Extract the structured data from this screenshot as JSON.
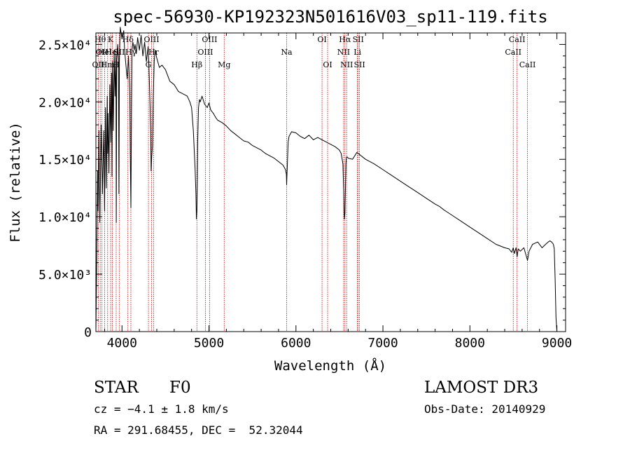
{
  "chart_data": {
    "type": "line",
    "title": "spec-56930-KP192323N501616V03_sp11-119.fits",
    "xlabel": "Wavelength (Å)",
    "ylabel": "Flux (relative)",
    "xlim": [
      3700,
      9100
    ],
    "ylim": [
      0,
      26000
    ],
    "x_ticks": [
      {
        "value": 4000,
        "label": "4000"
      },
      {
        "value": 5000,
        "label": "5000"
      },
      {
        "value": 6000,
        "label": "6000"
      },
      {
        "value": 7000,
        "label": "7000"
      },
      {
        "value": 8000,
        "label": "8000"
      },
      {
        "value": 9000,
        "label": "9000"
      }
    ],
    "y_ticks": [
      {
        "value": 0,
        "label": "0"
      },
      {
        "value": 5000,
        "label": "5.0×10³"
      },
      {
        "value": 10000,
        "label": "1.0×10⁴"
      },
      {
        "value": 15000,
        "label": "1.5×10⁴"
      },
      {
        "value": 20000,
        "label": "2.0×10⁴"
      },
      {
        "value": 25000,
        "label": "2.5×10⁴"
      }
    ],
    "series": [
      {
        "name": "spectrum",
        "color": "#000000",
        "x": [
          3700,
          3710,
          3720,
          3725,
          3735,
          3745,
          3760,
          3775,
          3790,
          3800,
          3810,
          3820,
          3830,
          3835,
          3840,
          3850,
          3860,
          3870,
          3880,
          3885,
          3890,
          3900,
          3910,
          3920,
          3930,
          3934,
          3940,
          3950,
          3960,
          3965,
          3970,
          3975,
          3980,
          3990,
          4000,
          4010,
          4020,
          4030,
          4045,
          4060,
          4075,
          4090,
          4095,
          4102,
          4110,
          4115,
          4125,
          4140,
          4150,
          4165,
          4180,
          4200,
          4220,
          4240,
          4260,
          4280,
          4300,
          4310,
          4320,
          4330,
          4335,
          4341,
          4350,
          4360,
          4370,
          4380,
          4400,
          4430,
          4460,
          4500,
          4550,
          4600,
          4650,
          4700,
          4750,
          4780,
          4800,
          4820,
          4840,
          4850,
          4856,
          4861,
          4866,
          4870,
          4880,
          4890,
          4900,
          4920,
          4950,
          4980,
          5000,
          5020,
          5050,
          5080,
          5100,
          5150,
          5200,
          5250,
          5300,
          5350,
          5400,
          5450,
          5500,
          5550,
          5600,
          5650,
          5700,
          5750,
          5800,
          5850,
          5880,
          5890,
          5893,
          5896,
          5900,
          5910,
          5920,
          5950,
          6000,
          6050,
          6100,
          6150,
          6200,
          6250,
          6300,
          6350,
          6400,
          6450,
          6500,
          6520,
          6540,
          6550,
          6556,
          6563,
          6570,
          6575,
          6580,
          6590,
          6600,
          6650,
          6700,
          6750,
          6800,
          6900,
          7000,
          7100,
          7200,
          7300,
          7400,
          7500,
          7600,
          7650,
          7700,
          7800,
          7900,
          8000,
          8100,
          8200,
          8300,
          8400,
          8450,
          8480,
          8498,
          8510,
          8530,
          8542,
          8555,
          8580,
          8620,
          8662,
          8680,
          8720,
          8780,
          8830,
          8870,
          8900,
          8920,
          8940,
          8960,
          8970,
          8980,
          8990,
          9000
        ],
        "y": [
          0,
          6200,
          14000,
          10500,
          17500,
          9500,
          18000,
          12000,
          17500,
          10500,
          19500,
          12500,
          20500,
          15500,
          19000,
          13800,
          21500,
          16500,
          22500,
          13500,
          23500,
          17500,
          24500,
          20500,
          24200,
          9500,
          23500,
          25000,
          23800,
          12000,
          23500,
          25200,
          26500,
          26000,
          25500,
          25800,
          26200,
          24500,
          23200,
          22000,
          24000,
          20500,
          15500,
          10800,
          19500,
          24500,
          25200,
          24500,
          25000,
          24200,
          25600,
          24500,
          25800,
          24000,
          25200,
          23500,
          24800,
          23000,
          20500,
          17500,
          14000,
          15200,
          16200,
          20500,
          23500,
          24500,
          23800,
          23000,
          23200,
          22800,
          21800,
          21500,
          20900,
          20700,
          20500,
          20000,
          19500,
          17500,
          14200,
          12000,
          9800,
          10500,
          13200,
          16500,
          19500,
          20200,
          20000,
          20500,
          19800,
          19500,
          19900,
          19300,
          19000,
          18600,
          18400,
          18200,
          17900,
          17500,
          17200,
          16900,
          16600,
          16500,
          16200,
          16000,
          15800,
          15500,
          15300,
          15100,
          14800,
          14500,
          14100,
          13700,
          12800,
          13600,
          14300,
          16500,
          17000,
          17400,
          17300,
          17000,
          16800,
          17100,
          16700,
          16900,
          16700,
          16500,
          16300,
          16100,
          15800,
          15500,
          14600,
          12000,
          9800,
          10300,
          12800,
          14600,
          15200,
          15200,
          15100,
          15000,
          15600,
          15300,
          15000,
          14600,
          14100,
          13600,
          13100,
          12600,
          12100,
          11600,
          11100,
          10900,
          10600,
          10100,
          9600,
          9100,
          8600,
          8100,
          7600,
          7300,
          7200,
          6900,
          7300,
          6800,
          7300,
          6500,
          7200,
          7000,
          7300,
          6200,
          7000,
          7600,
          7800,
          7300,
          7600,
          7800,
          7900,
          7800,
          7600,
          7200,
          4500,
          1200,
          0
        ]
      }
    ],
    "lines": [
      {
        "wavelength": 3727,
        "label": "OII",
        "row": 2
      },
      {
        "wavelength": 3750,
        "label": "Hθ",
        "row": 0
      },
      {
        "wavelength": 3770,
        "label": "OII",
        "row": 1
      },
      {
        "wavelength": 3800,
        "label": "Hel",
        "row": 1
      },
      {
        "wavelength": 3835,
        "label": "Hm",
        "row": 2
      },
      {
        "wavelength": 3869,
        "label": "K",
        "row": 0
      },
      {
        "wavelength": 3889,
        "label": "Hel",
        "row": 1
      },
      {
        "wavelength": 3933,
        "label": "H",
        "row": 2
      },
      {
        "wavelength": 3968,
        "label": "SII",
        "row": 1
      },
      {
        "wavelength": 4068,
        "label": "Hδ",
        "row": 0
      },
      {
        "wavelength": 4102,
        "label": "Hγ",
        "row": 1
      },
      {
        "wavelength": 4304,
        "label": "G",
        "row": 2
      },
      {
        "wavelength": 4340,
        "label": "OIII",
        "row": 0
      },
      {
        "wavelength": 4363,
        "label": "Hr",
        "row": 1
      },
      {
        "wavelength": 4861,
        "label": "Hβ",
        "row": 2
      },
      {
        "wavelength": 4959,
        "label": "OIII",
        "row": 1
      },
      {
        "wavelength": 5007,
        "label": "OIII",
        "row": 0
      },
      {
        "wavelength": 5175,
        "label": "Mg",
        "row": 2
      },
      {
        "wavelength": 5893,
        "label": "Na",
        "row": 1
      },
      {
        "wavelength": 6300,
        "label": "OI",
        "row": 0
      },
      {
        "wavelength": 6364,
        "label": "OI",
        "row": 2
      },
      {
        "wavelength": 6548,
        "label": "NII",
        "row": 1
      },
      {
        "wavelength": 6563,
        "label": "Hα",
        "row": 0
      },
      {
        "wavelength": 6583,
        "label": "NII",
        "row": 2
      },
      {
        "wavelength": 6707,
        "label": "Li",
        "row": 1
      },
      {
        "wavelength": 6716,
        "label": "SII",
        "row": 0
      },
      {
        "wavelength": 6731,
        "label": "SII",
        "row": 2
      },
      {
        "wavelength": 8498,
        "label": "CaII",
        "row": 1
      },
      {
        "wavelength": 8542,
        "label": "CaII",
        "row": 0
      },
      {
        "wavelength": 8662,
        "label": "CaII",
        "row": 2
      }
    ]
  },
  "footer": {
    "object_class": "STAR",
    "subclass": "F0",
    "survey": "LAMOST DR3",
    "redshift": "cz = −4.1 ± 1.8 km/s",
    "obs_date": "Obs-Date: 20140929",
    "coords": "RA = 291.68455, DEC =  52.32044"
  },
  "colors": {
    "axis": "#000000",
    "spectrum": "#000000",
    "line_marker": "#c00000",
    "background": "#ffffff"
  }
}
